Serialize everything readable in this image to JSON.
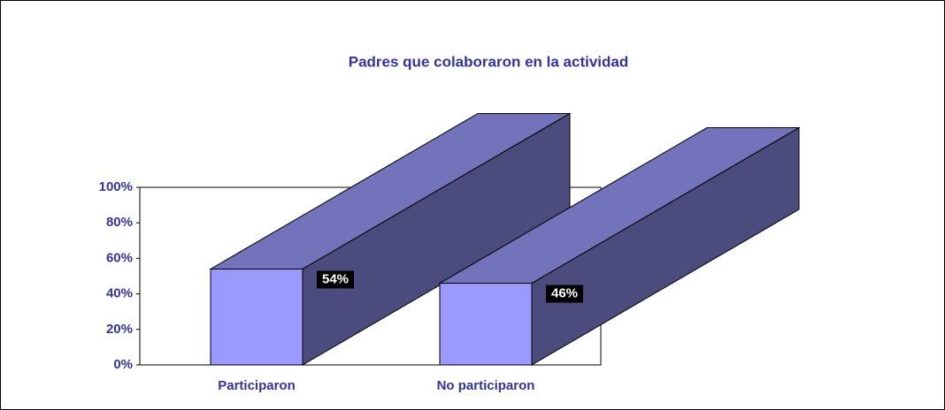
{
  "chart_data": {
    "type": "bar3d",
    "title": "Padres que colaboraron en la actividad",
    "categories": [
      "Participaron",
      "No participaron"
    ],
    "values": [
      54,
      46
    ],
    "value_labels": [
      "54%",
      "46%"
    ],
    "colors": {
      "front": "#9999ff",
      "top": "#7373bb",
      "side": "#4b4b7d"
    },
    "ylim": [
      0,
      100
    ],
    "yticks": [
      {
        "value": 0,
        "label": "0%"
      },
      {
        "value": 20,
        "label": "20%"
      },
      {
        "value": 40,
        "label": "40%"
      },
      {
        "value": 60,
        "label": "60%"
      },
      {
        "value": 80,
        "label": "80%"
      },
      {
        "value": 100,
        "label": "100%"
      }
    ]
  }
}
